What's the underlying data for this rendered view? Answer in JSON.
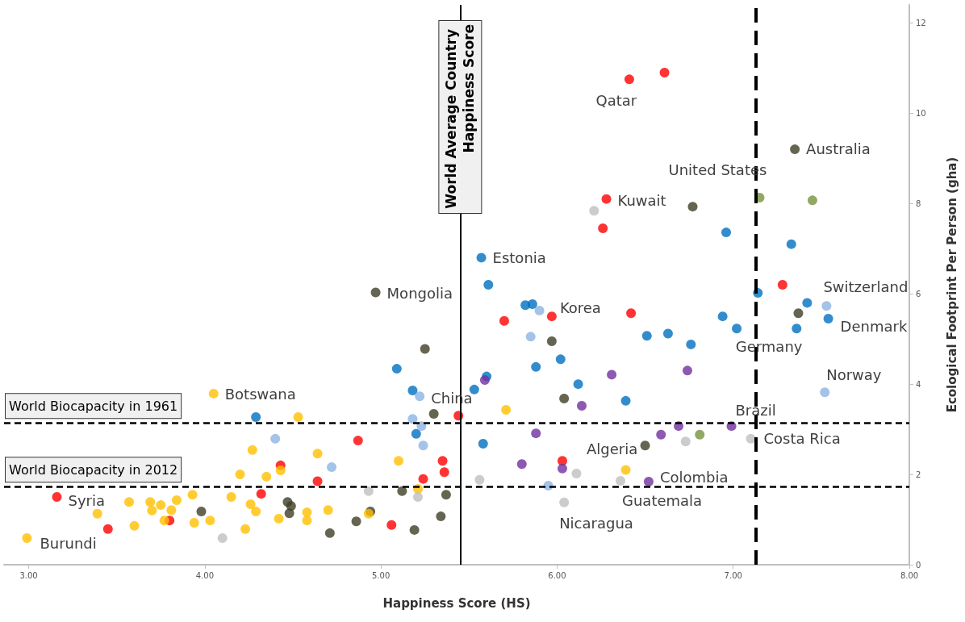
{
  "chart_data": {
    "type": "scatter",
    "xlabel": "Happiness Score (HS)",
    "ylabel": "Ecological Footprint Per Person (gha)",
    "xlim": [
      2.86,
      8.0
    ],
    "ylim": [
      0,
      12.4
    ],
    "xticks": [
      {
        "value": 3,
        "label": "3.00"
      },
      {
        "value": 4,
        "label": "4.00"
      },
      {
        "value": 5,
        "label": "5.00"
      },
      {
        "value": 6,
        "label": "6.00"
      },
      {
        "value": 7,
        "label": "7.00"
      },
      {
        "value": 8,
        "label": "8.00"
      }
    ],
    "yticks": [
      0,
      2,
      4,
      6,
      8,
      10,
      12
    ],
    "grid": false,
    "marker": "circle",
    "series": [
      {
        "color": "#ff0000",
        "x": [
          6.41,
          6.61,
          6.28,
          6.26,
          7.28,
          6.42,
          5.97,
          5.7,
          5.44,
          4.87,
          4.43,
          4.64,
          5.35,
          5.36,
          5.24,
          4.32,
          3.16,
          3.8,
          3.45,
          5.06,
          6.03
        ],
        "values": [
          10.75,
          10.9,
          8.1,
          7.45,
          6.2,
          5.57,
          5.5,
          5.4,
          3.3,
          2.75,
          2.2,
          1.85,
          2.3,
          2.05,
          1.9,
          1.57,
          1.5,
          0.98,
          0.79,
          0.88,
          2.3
        ]
      },
      {
        "color": "#0070c0",
        "x": [
          5.57,
          5.61,
          5.82,
          5.86,
          6.51,
          6.63,
          6.76,
          6.94,
          7.02,
          7.14,
          5.09,
          5.6,
          6.02,
          5.88,
          6.12,
          6.39,
          5.53,
          5.18,
          5.2,
          5.58,
          6.96,
          7.33,
          7.42,
          7.36,
          7.54,
          4.29
        ],
        "values": [
          6.8,
          6.2,
          5.75,
          5.77,
          5.07,
          5.12,
          4.88,
          5.5,
          5.23,
          6.02,
          4.34,
          4.17,
          4.55,
          4.38,
          4.0,
          3.63,
          3.88,
          3.86,
          2.9,
          2.68,
          7.36,
          7.1,
          5.8,
          5.23,
          5.45,
          3.27
        ]
      },
      {
        "color": "#403f26",
        "x": [
          7.35,
          6.77,
          4.97,
          5.25,
          5.97,
          6.04,
          7.37,
          6.5,
          5.3,
          5.12,
          5.37,
          3.98,
          4.47,
          4.49,
          4.48,
          4.94,
          4.86,
          4.71,
          5.34,
          5.19
        ],
        "values": [
          9.2,
          7.93,
          6.03,
          4.78,
          4.95,
          3.68,
          5.57,
          2.64,
          3.34,
          1.63,
          1.55,
          1.18,
          1.39,
          1.3,
          1.14,
          1.18,
          0.96,
          0.7,
          1.07,
          0.77
        ]
      },
      {
        "color": "#ffc000",
        "x": [
          4.05,
          4.53,
          5.71,
          6.39,
          5.1,
          4.27,
          4.64,
          4.2,
          4.35,
          4.43,
          3.93,
          4.15,
          3.57,
          3.69,
          3.75,
          3.84,
          3.7,
          3.81,
          3.39,
          4.26,
          4.29,
          3.6,
          3.77,
          3.94,
          4.03,
          4.23,
          4.42,
          4.58,
          4.58,
          4.7,
          5.21,
          4.93,
          2.99
        ],
        "values": [
          3.79,
          3.27,
          3.43,
          2.1,
          2.3,
          2.54,
          2.46,
          2.0,
          1.95,
          2.09,
          1.55,
          1.5,
          1.39,
          1.39,
          1.32,
          1.43,
          1.2,
          1.21,
          1.13,
          1.34,
          1.18,
          0.86,
          0.98,
          0.93,
          0.98,
          0.79,
          1.02,
          1.16,
          0.98,
          1.21,
          1.68,
          1.13,
          0.59
        ]
      },
      {
        "color": "#bfbfbf",
        "x": [
          6.21,
          4.1,
          4.93,
          5.21,
          5.56,
          6.11,
          6.36,
          6.73,
          7.1,
          6.04
        ],
        "values": [
          7.84,
          0.59,
          1.63,
          1.5,
          1.88,
          2.02,
          1.86,
          2.73,
          2.79,
          1.38
        ]
      },
      {
        "color": "#8db4e2",
        "x": [
          5.85,
          5.9,
          5.22,
          5.18,
          5.23,
          5.24,
          5.95,
          4.4,
          4.72,
          7.53,
          7.52
        ],
        "values": [
          5.05,
          5.63,
          3.73,
          3.23,
          3.07,
          2.64,
          1.75,
          2.79,
          2.16,
          5.73,
          3.82
        ]
      },
      {
        "color": "#7030a0",
        "x": [
          6.31,
          6.74,
          5.59,
          6.14,
          5.88,
          6.59,
          6.69,
          6.99,
          5.8,
          6.03,
          6.52
        ],
        "values": [
          4.21,
          4.3,
          4.09,
          3.52,
          2.91,
          2.88,
          3.07,
          3.07,
          2.23,
          2.13,
          1.84
        ]
      },
      {
        "color": "#77933c",
        "x": [
          7.15,
          7.45,
          6.81
        ],
        "values": [
          8.13,
          8.07,
          2.88
        ]
      }
    ],
    "ref_lines": [
      {
        "axis": "x",
        "value": 5.45,
        "label": "World Average Country Happiness Score",
        "line_style": "solid",
        "color": "#000000"
      },
      {
        "axis": "x",
        "value": 7.13,
        "label": null,
        "line_style": "dashed",
        "color": "#000000"
      },
      {
        "axis": "y",
        "value": 3.14,
        "label": "World Biocapacity in 1961",
        "line_style": "dashed",
        "color": "#000000"
      },
      {
        "axis": "y",
        "value": 1.73,
        "label": "World Biocapacity in 2012",
        "line_style": "dashed",
        "color": "#000000"
      }
    ],
    "annotations": [
      {
        "text": "Qatar",
        "x": 6.41,
        "y": 10.75
      },
      {
        "text": "Australia",
        "x": 7.35,
        "y": 9.2
      },
      {
        "text": "United States",
        "x": 7.15,
        "y": 8.13
      },
      {
        "text": "Kuwait",
        "x": 6.28,
        "y": 8.1
      },
      {
        "text": "Estonia",
        "x": 5.57,
        "y": 6.8
      },
      {
        "text": "Mongolia",
        "x": 4.97,
        "y": 6.03
      },
      {
        "text": "Korea",
        "x": 5.97,
        "y": 5.5
      },
      {
        "text": "Switzerland",
        "x": 7.42,
        "y": 5.8
      },
      {
        "text": "Denmark",
        "x": 7.54,
        "y": 5.45
      },
      {
        "text": "Germany",
        "x": 7.02,
        "y": 5.23
      },
      {
        "text": "Norway",
        "x": 7.52,
        "y": 3.82
      },
      {
        "text": "Botswana",
        "x": 4.05,
        "y": 3.79
      },
      {
        "text": "China",
        "x": 5.22,
        "y": 3.73
      },
      {
        "text": "Brazil",
        "x": 6.99,
        "y": 3.07
      },
      {
        "text": "Costa Rica",
        "x": 7.1,
        "y": 2.79
      },
      {
        "text": "Algeria",
        "x": 6.03,
        "y": 2.3
      },
      {
        "text": "Colombia",
        "x": 6.52,
        "y": 1.84
      },
      {
        "text": "Guatemala",
        "x": 6.36,
        "y": 1.86
      },
      {
        "text": "Nicaragua",
        "x": 6.04,
        "y": 1.38
      },
      {
        "text": "Syria",
        "x": 3.16,
        "y": 1.5
      },
      {
        "text": "Burundi",
        "x": 2.99,
        "y": 0.59
      }
    ]
  }
}
